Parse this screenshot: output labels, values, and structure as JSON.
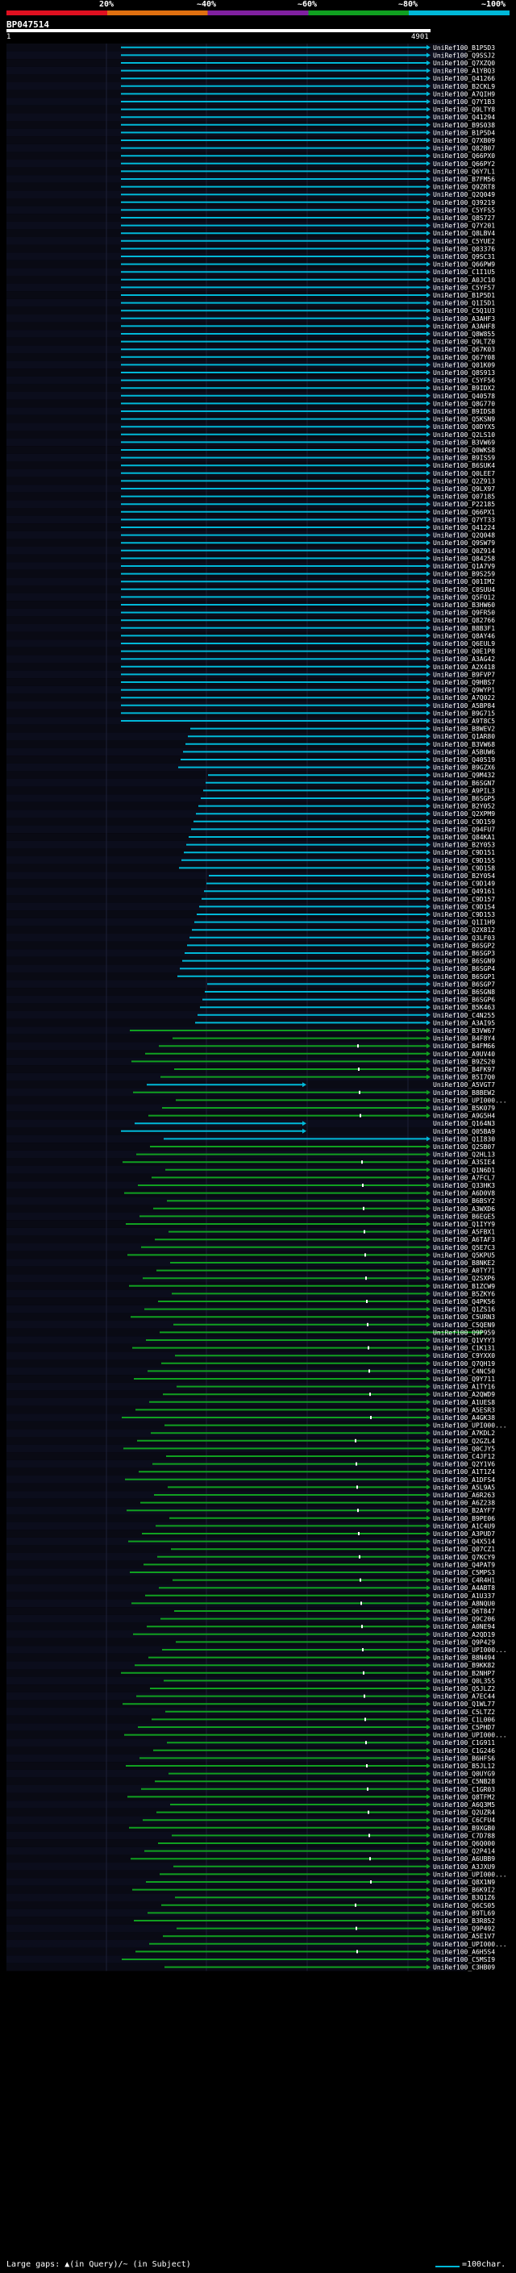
{
  "header": {
    "scale_marks": [
      "20%",
      "~40%",
      "~60%",
      "~80%",
      "~100%"
    ],
    "query_name": "BP047514",
    "query_start": "1",
    "query_end": "4901"
  },
  "colors": {
    "cyan": "#00b8d8",
    "green": "#10a020",
    "background": "#000000"
  },
  "footer": {
    "gaps_label": "Large gaps: ▲(in Query)/~ (in Subject)",
    "scale_label": "=100char."
  },
  "hits": [
    "UniRef100_B1P5D3",
    "UniRef100_Q9SSJ2",
    "UniRef100_Q7XZQ0",
    "UniRef100_A1YBQ3",
    "UniRef100_Q41266",
    "UniRef100_B2CKL9",
    "UniRef100_A7QIH9",
    "UniRef100_Q7Y1B3",
    "UniRef100_Q9LTY8",
    "UniRef100_Q41294",
    "UniRef100_B9S038",
    "UniRef100_B1P5D4",
    "UniRef100_Q7XB09",
    "UniRef100_Q82B07",
    "UniRef100_Q66PX0",
    "UniRef100_Q66PY2",
    "UniRef100_Q6Y7L1",
    "UniRef100_B7FM56",
    "UniRef100_Q9ZRT8",
    "UniRef100_Q2Q049",
    "UniRef100_Q39219",
    "UniRef100_C5YFS5",
    "UniRef100_Q8S727",
    "UniRef100_Q7Y201",
    "UniRef100_Q8LBV4",
    "UniRef100_C5YUE2",
    "UniRef100_Q03376",
    "UniRef100_Q9SC31",
    "UniRef100_Q66PW9",
    "UniRef100_C1I1U5",
    "UniRef100_A0JC10",
    "UniRef100_C5YF57",
    "UniRef100_B1P5D1",
    "UniRef100_Q1I5D1",
    "UniRef100_C5Q1U3",
    "UniRef100_A3AHF3",
    "UniRef100_A3AHF8",
    "UniRef100_Q8W855",
    "UniRef100_Q9LTZ0",
    "UniRef100_Q67K03",
    "UniRef100_Q67Y08",
    "UniRef100_Q01K09",
    "UniRef100_Q8S913",
    "UniRef100_C5YF56",
    "UniRef100_B9IDX2",
    "UniRef100_Q40578",
    "UniRef100_Q8G770",
    "UniRef100_B9IDS8",
    "UniRef100_Q5KSN9",
    "UniRef100_Q0DYX5",
    "UniRef100_Q2LS10",
    "UniRef100_B3VW69",
    "UniRef100_Q0WKS8",
    "UniRef100_B9IS59",
    "UniRef100_B6SUK4",
    "UniRef100_Q0LEE7",
    "UniRef100_Q2Z913",
    "UniRef100_Q9LX97",
    "UniRef100_Q07185",
    "UniRef100_P22185",
    "UniRef100_Q66PX1",
    "UniRef100_Q7YT33",
    "UniRef100_Q41224",
    "UniRef100_Q2Q048",
    "UniRef100_Q9SW79",
    "UniRef100_Q0Z914",
    "UniRef100_Q84258",
    "UniRef100_Q1A7V9",
    "UniRef100_B9S259",
    "UniRef100_Q01IM2",
    "UniRef100_C0SUU4",
    "UniRef100_Q5FO12",
    "UniRef100_B3HW60",
    "UniRef100_Q9FR50",
    "UniRef100_Q82766",
    "UniRef100_B8B3F1",
    "UniRef100_Q8AY46",
    "UniRef100_Q6EUL9",
    "UniRef100_Q0E1P8",
    "UniRef100_A3AG42",
    "UniRef100_A2X418",
    "UniRef100_B9FVP7",
    "UniRef100_Q9HBS7",
    "UniRef100_Q9WYP1",
    "UniRef100_A7Q022",
    "UniRef100_A5BP84",
    "UniRef100_B9G715",
    "UniRef100_A9T8C5",
    "UniRef100_B8WEV2",
    "UniRef100_Q1AR80",
    "UniRef100_B3VW68",
    "UniRef100_A5BUW6",
    "UniRef100_Q40519",
    "UniRef100_B9GZX6",
    "UniRef100_Q9M432",
    "UniRef100_B6SGN7",
    "UniRef100_A9PIL3",
    "UniRef100_B6SGP5",
    "UniRef100_B2Y052",
    "UniRef100_Q2XPM9",
    "UniRef100_C9D159",
    "UniRef100_Q94FU7",
    "UniRef100_Q84KA1",
    "UniRef100_B2Y053",
    "UniRef100_C9D151",
    "UniRef100_C9D155",
    "UniRef100_C9D158",
    "UniRef100_B2Y054",
    "UniRef100_C9D149",
    "UniRef100_Q49161",
    "UniRef100_C9D157",
    "UniRef100_C9D154",
    "UniRef100_C9D153",
    "UniRef100_Q1I1H9",
    "UniRef100_Q2X812",
    "UniRef100_Q3LF03",
    "UniRef100_B6SGP2",
    "UniRef100_B6SGP3",
    "UniRef100_B6SGN9",
    "UniRef100_B6SGP4",
    "UniRef100_B6SGP1",
    "UniRef100_B6SGP7",
    "UniRef100_B6SGN8",
    "UniRef100_B6SGP6",
    "UniRef100_B5K463",
    "UniRef100_C4N255",
    "UniRef100_A3AI95",
    "UniRef100_B3VW67",
    "UniRef100_B4F8Y4",
    "UniRef100_B4FM66",
    "UniRef100_A9UV40",
    "UniRef100_B9ZS20",
    "UniRef100_B4FK97",
    "UniRef100_B5I7Q0",
    "UniRef100_A5VGT7",
    "UniRef100_B8BEW2",
    "UniRef100_UPI000...",
    "UniRef100_B5K079",
    "UniRef100_A9G5H4",
    "UniRef100_Q164N3",
    "UniRef100_Q05BA9",
    "UniRef100_Q1I830",
    "UniRef100_Q2SB07",
    "UniRef100_Q2HL13",
    "UniRef100_A3SIE4",
    "UniRef100_Q1N6D1",
    "UniRef100_A7FCL7",
    "UniRef100_Q33HK3",
    "UniRef100_A6D0V8",
    "UniRef100_B6BSY2",
    "UniRef100_A3WXD6",
    "UniRef100_B6EGE5",
    "UniRef100_Q1IYY9",
    "UniRef100_A5FBX1",
    "UniRef100_A6TAF3",
    "UniRef100_Q5E7C3",
    "UniRef100_Q5KPU5",
    "UniRef100_B8NKE2",
    "UniRef100_A0TY71",
    "UniRef100_Q2SXP6",
    "UniRef100_B1ZCW9",
    "UniRef100_B5ZKY6",
    "UniRef100_Q4PK56",
    "UniRef100_Q1ZS16",
    "UniRef100_C5URN3",
    "UniRef100_C5QEN9",
    "UniRef100_Q9P959",
    "UniRef100_Q1VYY3",
    "UniRef100_C1K131",
    "UniRef100_C9YXX0",
    "UniRef100_Q7QH19",
    "UniRef100_C4NC50",
    "UniRef100_Q9Y711",
    "UniRef100_A1TY16",
    "UniRef100_A2QWD9",
    "UniRef100_A1UES8",
    "UniRef100_A5ESR3",
    "UniRef100_A4GK38",
    "UniRef100_UPI000...",
    "UniRef100_A7KDL2",
    "UniRef100_Q2GZL4",
    "UniRef100_Q0CJY5",
    "UniRef100_C4JF12",
    "UniRef100_Q2Y1V6",
    "UniRef100_A1T1Z4",
    "UniRef100_A1DFS4",
    "UniRef100_A5L9A5",
    "UniRef100_A6R263",
    "UniRef100_A6Z238",
    "UniRef100_B2AYF7",
    "UniRef100_B9PE06",
    "UniRef100_A1C4U9",
    "UniRef100_A3PUD7",
    "UniRef100_Q4X514",
    "UniRef100_Q07CZ1",
    "UniRef100_Q7KCY9",
    "UniRef100_Q4PAT9",
    "UniRef100_C5MPS3",
    "UniRef100_C4R4H1",
    "UniRef100_A4ABT8",
    "UniRef100_A1U337",
    "UniRef100_A8NQU0",
    "UniRef100_Q6T847",
    "UniRef100_Q9C206",
    "UniRef100_A0NE94",
    "UniRef100_A2QD19",
    "UniRef100_Q9P429",
    "UniRef100_UPI000...",
    "UniRef100_B8N494",
    "UniRef100_B9KK82",
    "UniRef100_B2NHP7",
    "UniRef100_Q0L355",
    "UniRef100_Q5JLZ2",
    "UniRef100_A7EC44",
    "UniRef100_Q1WL77",
    "UniRef100_C5LTZ2",
    "UniRef100_C1L006",
    "UniRef100_C5PHD7",
    "UniRef100_UPI000...",
    "UniRef100_C1G911",
    "UniRef100_C1G246",
    "UniRef100_B6HFS6",
    "UniRef100_B5JL12",
    "UniRef100_Q0UYG9",
    "UniRef100_C5NB28",
    "UniRef100_C1GR03",
    "UniRef100_Q8TFM2",
    "UniRef100_A6Q3M5",
    "UniRef100_Q2UZR4",
    "UniRef100_C6CFU4",
    "UniRef100_B9XGB0",
    "UniRef100_C7D788",
    "UniRef100_Q6Q000",
    "UniRef100_Q2P414",
    "UniRef100_A6UBB9",
    "UniRef100_A3JXU9",
    "UniRef100_UPI000...",
    "UniRef100_Q8X1N9",
    "UniRef100_B6K9I2",
    "UniRef100_B3Q1Z6",
    "UniRef100_Q6CS05",
    "UniRef100_B9TL69",
    "UniRef100_B3R852",
    "UniRef100_Q9P492",
    "UniRef100_A5E1V7",
    "UniRef100_UPI000...",
    "UniRef100_A6H5S4",
    "UniRef100_C5MSI9",
    "UniRef100_C3HB09"
  ]
}
